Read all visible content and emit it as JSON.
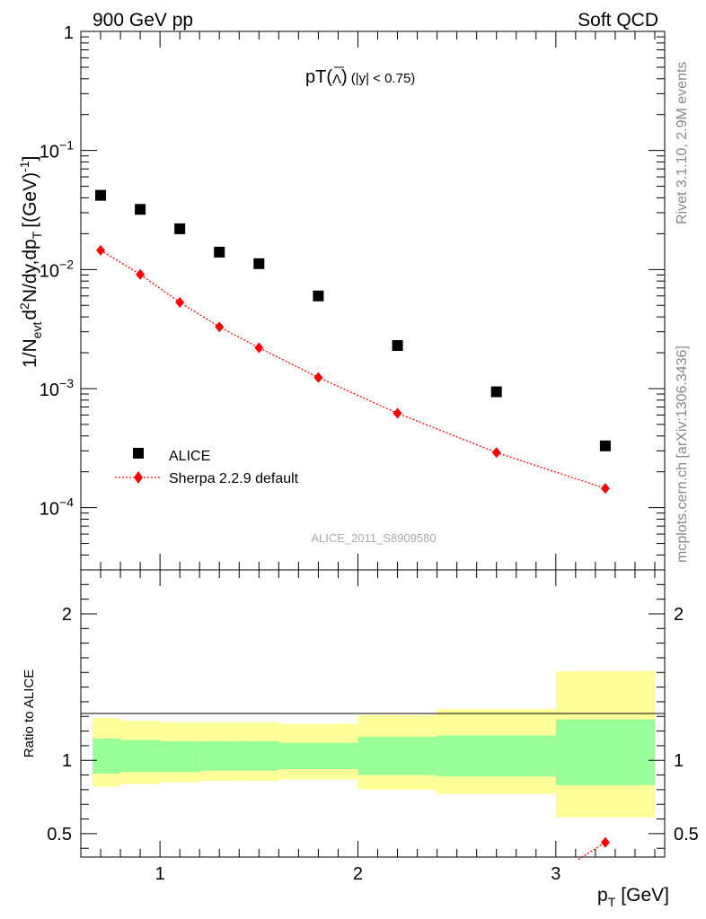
{
  "header": {
    "left": "900 GeV pp",
    "right": "Soft QCD"
  },
  "side": {
    "rivet": "Rivet 3.1.10,  2.9M events",
    "mcplots": "mcplots.cern.ch [arXiv:1306.3436]"
  },
  "chart_data": [
    {
      "type": "scatter",
      "title_main": "pT(",
      "title_particle": "Λ",
      "title_cut": "(|y| < 0.75)",
      "ylabel": "1/N_evt d²N/dy,dp_T [(GeV)⁻¹]",
      "yscale": "log",
      "ylim": [
        3e-05,
        1
      ],
      "xlim": [
        0.6,
        3.55
      ],
      "analysis_id": "ALICE_2011_S8909580",
      "y_ticks": [
        {
          "value": 1,
          "mantissa": "1",
          "exp": ""
        },
        {
          "value": 0.1,
          "mantissa": "10",
          "exp": "−1"
        },
        {
          "value": 0.01,
          "mantissa": "10",
          "exp": "−2"
        },
        {
          "value": 0.001,
          "mantissa": "10",
          "exp": "−3"
        },
        {
          "value": 0.0001,
          "mantissa": "10",
          "exp": "−4"
        }
      ],
      "legend": [
        "ALICE",
        "Sherpa 2.2.9 default"
      ],
      "series": [
        {
          "name": "ALICE",
          "marker": "square",
          "color": "#000000",
          "x": [
            0.7,
            0.9,
            1.1,
            1.3,
            1.5,
            1.8,
            2.2,
            2.7,
            3.25
          ],
          "y": [
            0.042,
            0.032,
            0.022,
            0.014,
            0.0112,
            0.006,
            0.0023,
            0.00094,
            0.00033
          ]
        },
        {
          "name": "Sherpa 2.2.9 default",
          "marker": "diamond",
          "line": "dotted",
          "color": "#ff0000",
          "x": [
            0.7,
            0.9,
            1.1,
            1.3,
            1.5,
            1.8,
            2.2,
            2.7,
            3.25
          ],
          "y": [
            0.0145,
            0.0091,
            0.0053,
            0.0033,
            0.0022,
            0.00124,
            0.00062,
            0.00029,
            0.000145
          ]
        }
      ]
    },
    {
      "type": "area",
      "ylabel": "Ratio to ALICE",
      "xlabel_main": "p",
      "xlabel_sub": "T",
      "xlabel_unit": "[GeV]",
      "ylim": [
        0.34,
        2.3
      ],
      "xlim": [
        0.6,
        3.55
      ],
      "x_ticks": [
        "1",
        "2",
        "3"
      ],
      "y_ticks": [
        "0.5",
        "1",
        "2"
      ],
      "colors": {
        "inner": "#99ff99",
        "outer": "#ffff99"
      },
      "bands": [
        {
          "x": [
            0.6,
            0.8
          ],
          "inner": [
            0.91,
            1.15
          ],
          "outer": [
            0.82,
            1.29
          ]
        },
        {
          "x": [
            0.8,
            1.0
          ],
          "inner": [
            0.92,
            1.14
          ],
          "outer": [
            0.84,
            1.27
          ]
        },
        {
          "x": [
            1.0,
            1.2
          ],
          "inner": [
            0.92,
            1.13
          ],
          "outer": [
            0.85,
            1.26
          ]
        },
        {
          "x": [
            1.2,
            1.4
          ],
          "inner": [
            0.93,
            1.13
          ],
          "outer": [
            0.86,
            1.26
          ]
        },
        {
          "x": [
            1.4,
            1.6
          ],
          "inner": [
            0.93,
            1.13
          ],
          "outer": [
            0.86,
            1.26
          ]
        },
        {
          "x": [
            1.6,
            2.0
          ],
          "inner": [
            0.94,
            1.12
          ],
          "outer": [
            0.87,
            1.25
          ]
        },
        {
          "x": [
            2.0,
            2.4
          ],
          "inner": [
            0.9,
            1.16
          ],
          "outer": [
            0.8,
            1.31
          ]
        },
        {
          "x": [
            2.4,
            3.0
          ],
          "inner": [
            0.89,
            1.17
          ],
          "outer": [
            0.77,
            1.35
          ]
        },
        {
          "x": [
            3.0,
            3.5
          ],
          "inner": [
            0.83,
            1.28
          ],
          "outer": [
            0.61,
            1.61
          ]
        }
      ],
      "series": [
        {
          "name": "Sherpa 2.2.9 default",
          "color": "#ff0000",
          "x": [
            3.25
          ],
          "y": [
            0.44
          ],
          "err": [
            0.02
          ]
        }
      ]
    }
  ]
}
